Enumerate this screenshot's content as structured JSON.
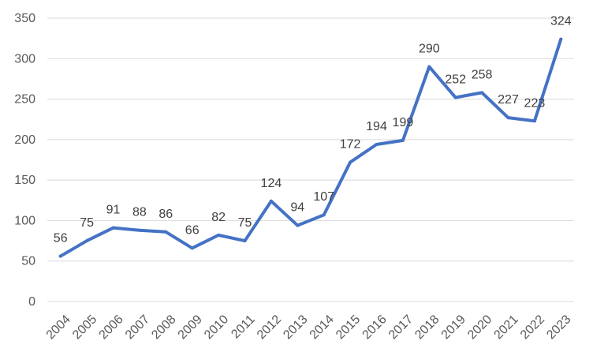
{
  "chart_data": {
    "type": "line",
    "title": "",
    "xlabel": "",
    "ylabel": "",
    "x": [
      "2004",
      "2005",
      "2006",
      "2007",
      "2008",
      "2009",
      "2010",
      "2011",
      "2012",
      "2013",
      "2014",
      "2015",
      "2016",
      "2017",
      "2018",
      "2019",
      "2020",
      "2021",
      "2022",
      "2023"
    ],
    "series": [
      {
        "values": [
          56,
          75,
          91,
          88,
          86,
          66,
          82,
          75,
          124,
          94,
          107,
          172,
          194,
          199,
          290,
          252,
          258,
          227,
          223,
          324
        ]
      }
    ],
    "ylim": [
      0,
      350
    ],
    "yticks": [
      "0",
      "50",
      "100",
      "150",
      "200",
      "250",
      "300",
      "350"
    ],
    "grid": true,
    "legend": "none",
    "data_labels": true,
    "colors": {
      "line": "#4472C4",
      "grid": "#d9d9d9",
      "axis": "#d9d9d9",
      "tick_text": "#595959",
      "label_text": "#404040"
    }
  }
}
